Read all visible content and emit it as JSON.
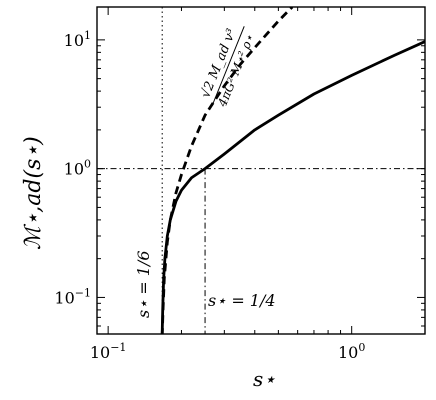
{
  "chart_data": {
    "type": "line",
    "xscale": "log",
    "yscale": "log",
    "xlim": [
      0.09,
      2.0
    ],
    "ylim": [
      0.052,
      18.0
    ],
    "xlabel": "s⋆",
    "ylabel": "ℳ⋆,ad(s⋆)",
    "x_ticks": [
      {
        "value": 0.1,
        "base": "10",
        "exp": "−1"
      },
      {
        "value": 1.0,
        "base": "10",
        "exp": "0"
      }
    ],
    "y_ticks": [
      {
        "value": 0.1,
        "base": "10",
        "exp": "−1"
      },
      {
        "value": 1.0,
        "base": "10",
        "exp": "0"
      },
      {
        "value": 10.0,
        "base": "10",
        "exp": "1"
      }
    ],
    "series": [
      {
        "style": "solid",
        "color": "#000000",
        "x": [
          0.1667,
          0.1675,
          0.169,
          0.171,
          0.175,
          0.18,
          0.19,
          0.2,
          0.22,
          0.25,
          0.3,
          0.4,
          0.5,
          0.7,
          1.0,
          1.5,
          2.0
        ],
        "y": [
          0.052,
          0.08,
          0.14,
          0.2,
          0.3,
          0.4,
          0.56,
          0.68,
          0.85,
          1.0,
          1.3,
          2.0,
          2.6,
          3.8,
          5.3,
          7.6,
          9.7
        ]
      },
      {
        "style": "dashed",
        "color": "#000000",
        "x": [
          0.1667,
          0.168,
          0.17,
          0.175,
          0.18,
          0.19,
          0.2,
          0.22,
          0.25,
          0.3,
          0.35,
          0.4,
          0.45,
          0.5,
          0.57
        ],
        "y": [
          0.05,
          0.08,
          0.14,
          0.27,
          0.4,
          0.65,
          0.9,
          1.5,
          2.6,
          4.4,
          6.5,
          8.7,
          11.2,
          14.0,
          18.0
        ]
      }
    ],
    "reference_lines": [
      {
        "orientation": "vertical",
        "x": 0.1667,
        "style": "dotted",
        "label": "s⋆ = 1/6"
      },
      {
        "orientation": "vertical",
        "x": 0.25,
        "style": "dashdot",
        "y_top": 1.0,
        "label": "s⋆ = 1/4"
      },
      {
        "orientation": "horizontal",
        "y": 1.0,
        "style": "dashdot"
      }
    ],
    "annotation": {
      "numerator": "√2 M_ad v³",
      "denominator": "4πG² M⋆² ρ⋆",
      "attached_to": "dashed"
    },
    "grid": false,
    "legend": "none"
  }
}
